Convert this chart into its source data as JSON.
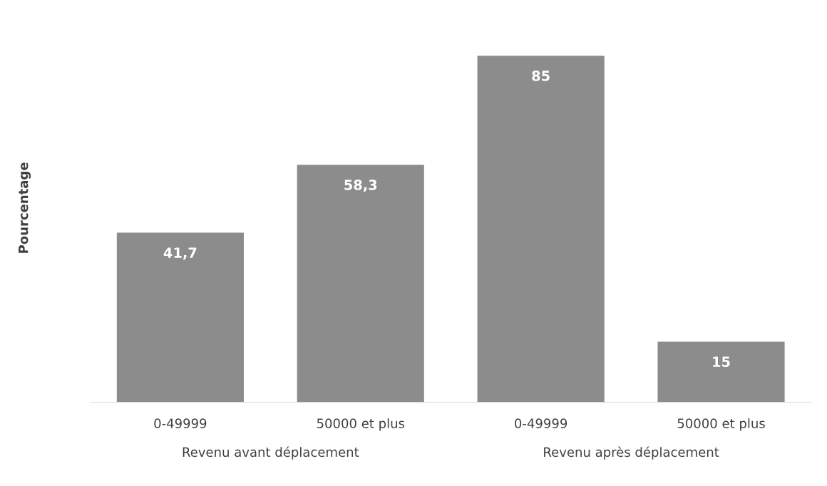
{
  "chart_data": {
    "type": "bar",
    "ylabel": "Pourcentage",
    "categories": [
      "0-49999",
      "50000 et plus",
      "0-49999",
      "50000 et plus"
    ],
    "values": [
      41.7,
      58.3,
      85,
      15
    ],
    "value_labels": [
      "41,7",
      "58,3",
      "85",
      "15"
    ],
    "color": "#8c8c8c",
    "annotations": [
      "Revenu avant déplacement",
      "Revenu après déplacement"
    ],
    "grid": false,
    "legend": false
  }
}
